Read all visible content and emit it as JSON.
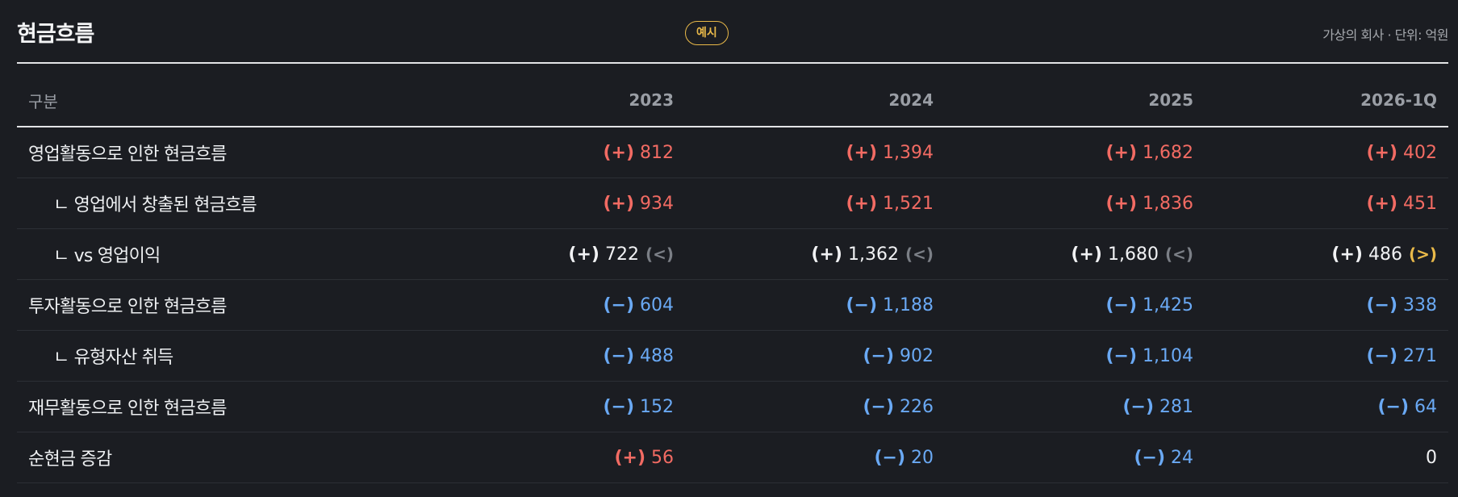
{
  "header": {
    "title": "현금흐름",
    "badge": "예시",
    "meta": "가상의 회사 · 단위: 억원"
  },
  "columns": [
    "구분",
    "2023",
    "2024",
    "2025",
    "2026-1Q"
  ],
  "rows": [
    {
      "label": "영업활동으로 인한 현금흐름",
      "cells": [
        {
          "sign": "(+)",
          "value": "812"
        },
        {
          "sign": "(+)",
          "value": "1,394"
        },
        {
          "sign": "(+)",
          "value": "1,682"
        },
        {
          "sign": "(+)",
          "value": "402"
        }
      ]
    },
    {
      "label": "ㄴ 영업에서 창출된 현금흐름",
      "cells": [
        {
          "sign": "(+)",
          "value": "934"
        },
        {
          "sign": "(+)",
          "value": "1,521"
        },
        {
          "sign": "(+)",
          "value": "1,836"
        },
        {
          "sign": "(+)",
          "value": "451"
        }
      ]
    },
    {
      "label": "ㄴ vs 영업이익",
      "cells": [
        {
          "sign": "(+)",
          "value": "722",
          "cmp": "(<)"
        },
        {
          "sign": "(+)",
          "value": "1,362",
          "cmp": "(<)"
        },
        {
          "sign": "(+)",
          "value": "1,680",
          "cmp": "(<)"
        },
        {
          "sign": "(+)",
          "value": "486",
          "cmp": "(>)"
        }
      ]
    },
    {
      "label": "투자활동으로 인한 현금흐름",
      "cells": [
        {
          "sign": "(−)",
          "value": "604"
        },
        {
          "sign": "(−)",
          "value": "1,188"
        },
        {
          "sign": "(−)",
          "value": "1,425"
        },
        {
          "sign": "(−)",
          "value": "338"
        }
      ]
    },
    {
      "label": "ㄴ 유형자산 취득",
      "cells": [
        {
          "sign": "(−)",
          "value": "488"
        },
        {
          "sign": "(−)",
          "value": "902"
        },
        {
          "sign": "(−)",
          "value": "1,104"
        },
        {
          "sign": "(−)",
          "value": "271"
        }
      ]
    },
    {
      "label": "재무활동으로 인한 현금흐름",
      "cells": [
        {
          "sign": "(−)",
          "value": "152"
        },
        {
          "sign": "(−)",
          "value": "226"
        },
        {
          "sign": "(−)",
          "value": "281"
        },
        {
          "sign": "(−)",
          "value": "64"
        }
      ]
    },
    {
      "label": "순현금 증감",
      "cells": [
        {
          "sign": "(+)",
          "value": "56"
        },
        {
          "sign": "(−)",
          "value": "20"
        },
        {
          "sign": "(−)",
          "value": "24"
        },
        {
          "sign": "",
          "value": "0"
        }
      ]
    }
  ],
  "colors": {
    "positive": "#f26b63",
    "negative": "#6aa9f4",
    "accent": "#e9b949",
    "background": "#1b1d22"
  }
}
